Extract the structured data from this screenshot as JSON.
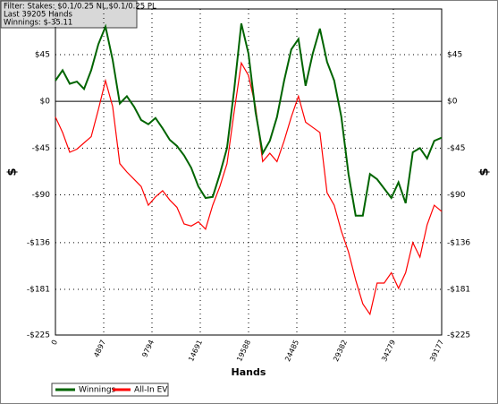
{
  "chart_data": {
    "type": "line",
    "annotations": [
      "Filter: Stakes: $0.1/0.25 NL,$0.1/0.25 PL",
      "Last  39205 Hands",
      "Winnings: $-35.11"
    ],
    "xlabel": "Hands",
    "ylabel": "$",
    "x": [
      0,
      725,
      1450,
      2175,
      2900,
      3625,
      4350,
      5075,
      5800,
      6525,
      7250,
      7975,
      8700,
      9425,
      10150,
      10875,
      11600,
      12325,
      13050,
      13775,
      14500,
      15225,
      15950,
      16675,
      17400,
      18125,
      18850,
      19575,
      20300,
      21025,
      21750,
      22475,
      23200,
      23925,
      24650,
      25375,
      26100,
      26825,
      27550,
      28275,
      29000,
      29725,
      30450,
      31175,
      31900,
      32625,
      33350,
      34075,
      34800,
      35525,
      36250,
      36975,
      37700,
      38425,
      39177
    ],
    "series": [
      {
        "name": "Winnings",
        "color": "#006400",
        "values": [
          20,
          30,
          17,
          19,
          12,
          30,
          55,
          72,
          40,
          -2,
          5,
          -5,
          -18,
          -22,
          -16,
          -26,
          -37,
          -43,
          -52,
          -64,
          -82,
          -93,
          -92,
          -70,
          -45,
          11,
          75,
          46,
          -10,
          -50,
          -38,
          -15,
          20,
          50,
          60,
          15,
          46,
          70,
          38,
          20,
          -15,
          -70,
          -110,
          -110,
          -70,
          -75,
          -84,
          -93,
          -78,
          -98,
          -49,
          -45,
          -55,
          -38,
          -35
        ]
      },
      {
        "name": "All-In EV",
        "color": "#ff0000",
        "values": [
          -15,
          -30,
          -49,
          -46,
          -40,
          -34,
          -8,
          20,
          -5,
          -60,
          -68,
          -75,
          -82,
          -100,
          -92,
          -86,
          -95,
          -102,
          -118,
          -120,
          -116,
          -123,
          -100,
          -82,
          -60,
          -10,
          37,
          25,
          -5,
          -58,
          -50,
          -58,
          -38,
          -15,
          5,
          -20,
          -25,
          -30,
          -88,
          -100,
          -125,
          -145,
          -172,
          -195,
          -205,
          -175,
          -175,
          -165,
          -180,
          -165,
          -136,
          -150,
          -119,
          -100,
          -106
        ]
      }
    ],
    "xlim": [
      0,
      39177
    ],
    "xticks": [
      0,
      4897,
      9794,
      14691,
      19588,
      24485,
      29382,
      34279,
      39177
    ],
    "ylim": [
      -225,
      89
    ],
    "yticks": [
      {
        "value": -225,
        "label": "-$225"
      },
      {
        "value": -181,
        "label": "-$181"
      },
      {
        "value": -136,
        "label": "-$136"
      },
      {
        "value": -90,
        "label": "-$90"
      },
      {
        "value": -45,
        "label": "-$45"
      },
      {
        "value": 0,
        "label": "$0"
      },
      {
        "value": 45,
        "label": "$45"
      }
    ],
    "grid": true
  }
}
